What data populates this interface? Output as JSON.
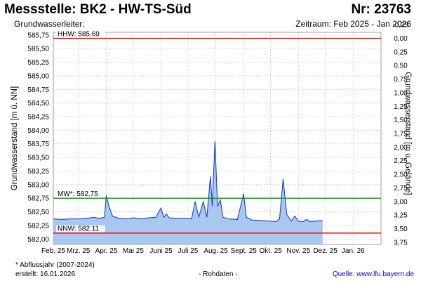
{
  "header": {
    "title": "Messstelle: BK2 - HW-TS-Süd",
    "nr": "Nr: 23763",
    "subtitle": "Grundwasserleiter:",
    "zeitraum": "Zeitraum: Feb 2025 - Jan 2026"
  },
  "footer": {
    "footnote": "* Abflussjahr (2007-2024)",
    "erstellt": "erstellt:  16.01.2026",
    "rohdaten": "- Rohdaten -",
    "quelle": "Quelle:  www.lfu.bayern.de"
  },
  "colors": {
    "series": "#1e3fc8",
    "fill": "#a8c8f0",
    "hhw": "#e60000",
    "mw": "#00a000",
    "nnw": "#e60000",
    "grid": "#cccccc"
  },
  "chart_data": {
    "type": "area",
    "ylabel_left": "Grundwasserstand [m ü. NN]",
    "ylabel_right": "Grundwasserstand [m u. Gelände]",
    "ylim": [
      581.9,
      585.8
    ],
    "y_ticks": [
      "585,75",
      "585,50",
      "585,25",
      "585,00",
      "584,75",
      "584,50",
      "584,25",
      "584,00",
      "583,75",
      "583,50",
      "583,25",
      "583,00",
      "582,75",
      "582,50",
      "582,25",
      "582,00"
    ],
    "y_ticks_right": [
      "-0,25",
      "0,00",
      "0,25",
      "0,50",
      "0,75",
      "1,00",
      "1,25",
      "1,50",
      "1,75",
      "2,00",
      "2,25",
      "2,50",
      "2,75",
      "3,00",
      "3,25",
      "3,50",
      "3,75"
    ],
    "x_labels": [
      "Feb. 25",
      "Mrz. 25",
      "Apr. 25",
      "Mai 25",
      "Juni 25",
      "Juli 25",
      "Aug. 25",
      "Sept. 25",
      "Okt. 25",
      "Nov. 25",
      "Dez. 25",
      "Jan. 26"
    ],
    "x_range": [
      "2025-02-01",
      "2026-02-01"
    ],
    "grid": true,
    "reference_lines": [
      {
        "label": "HHW: 585.69",
        "value": 585.69,
        "kind": "hhw"
      },
      {
        "label": "MW*: 582.75",
        "value": 582.75,
        "kind": "mw"
      },
      {
        "label": "NNW: 582.11",
        "value": 582.11,
        "kind": "nnw"
      }
    ],
    "series": [
      {
        "points": [
          [
            "2025-02-01",
            582.37
          ],
          [
            "2025-02-10",
            582.36
          ],
          [
            "2025-02-20",
            582.37
          ],
          [
            "2025-03-01",
            582.37
          ],
          [
            "2025-03-10",
            582.38
          ],
          [
            "2025-03-18",
            582.4
          ],
          [
            "2025-03-24",
            582.38
          ],
          [
            "2025-03-30",
            582.4
          ],
          [
            "2025-04-01",
            582.8
          ],
          [
            "2025-04-04",
            582.6
          ],
          [
            "2025-04-08",
            582.42
          ],
          [
            "2025-04-15",
            582.38
          ],
          [
            "2025-04-25",
            582.37
          ],
          [
            "2025-05-01",
            582.39
          ],
          [
            "2025-05-10",
            582.37
          ],
          [
            "2025-05-18",
            582.39
          ],
          [
            "2025-05-26",
            582.4
          ],
          [
            "2025-06-01",
            582.57
          ],
          [
            "2025-06-04",
            582.4
          ],
          [
            "2025-06-07",
            582.46
          ],
          [
            "2025-06-10",
            582.39
          ],
          [
            "2025-06-20",
            582.38
          ],
          [
            "2025-07-01",
            582.38
          ],
          [
            "2025-07-05",
            582.37
          ],
          [
            "2025-07-09",
            582.69
          ],
          [
            "2025-07-13",
            582.4
          ],
          [
            "2025-07-18",
            582.69
          ],
          [
            "2025-07-22",
            582.4
          ],
          [
            "2025-07-26",
            583.15
          ],
          [
            "2025-07-28",
            582.6
          ],
          [
            "2025-07-31",
            583.8
          ],
          [
            "2025-08-03",
            582.6
          ],
          [
            "2025-08-06",
            582.72
          ],
          [
            "2025-08-09",
            582.4
          ],
          [
            "2025-08-15",
            582.37
          ],
          [
            "2025-08-25",
            582.36
          ],
          [
            "2025-09-01",
            582.83
          ],
          [
            "2025-09-04",
            582.4
          ],
          [
            "2025-09-10",
            582.35
          ],
          [
            "2025-09-20",
            582.34
          ],
          [
            "2025-09-30",
            582.33
          ],
          [
            "2025-10-07",
            582.32
          ],
          [
            "2025-10-11",
            582.37
          ],
          [
            "2025-10-15",
            583.1
          ],
          [
            "2025-10-19",
            582.45
          ],
          [
            "2025-10-24",
            582.33
          ],
          [
            "2025-10-28",
            582.42
          ],
          [
            "2025-11-01",
            582.33
          ],
          [
            "2025-11-06",
            582.32
          ],
          [
            "2025-11-10",
            582.36
          ],
          [
            "2025-11-14",
            582.32
          ],
          [
            "2025-11-20",
            582.33
          ],
          [
            "2025-11-28",
            582.34
          ]
        ]
      }
    ]
  }
}
